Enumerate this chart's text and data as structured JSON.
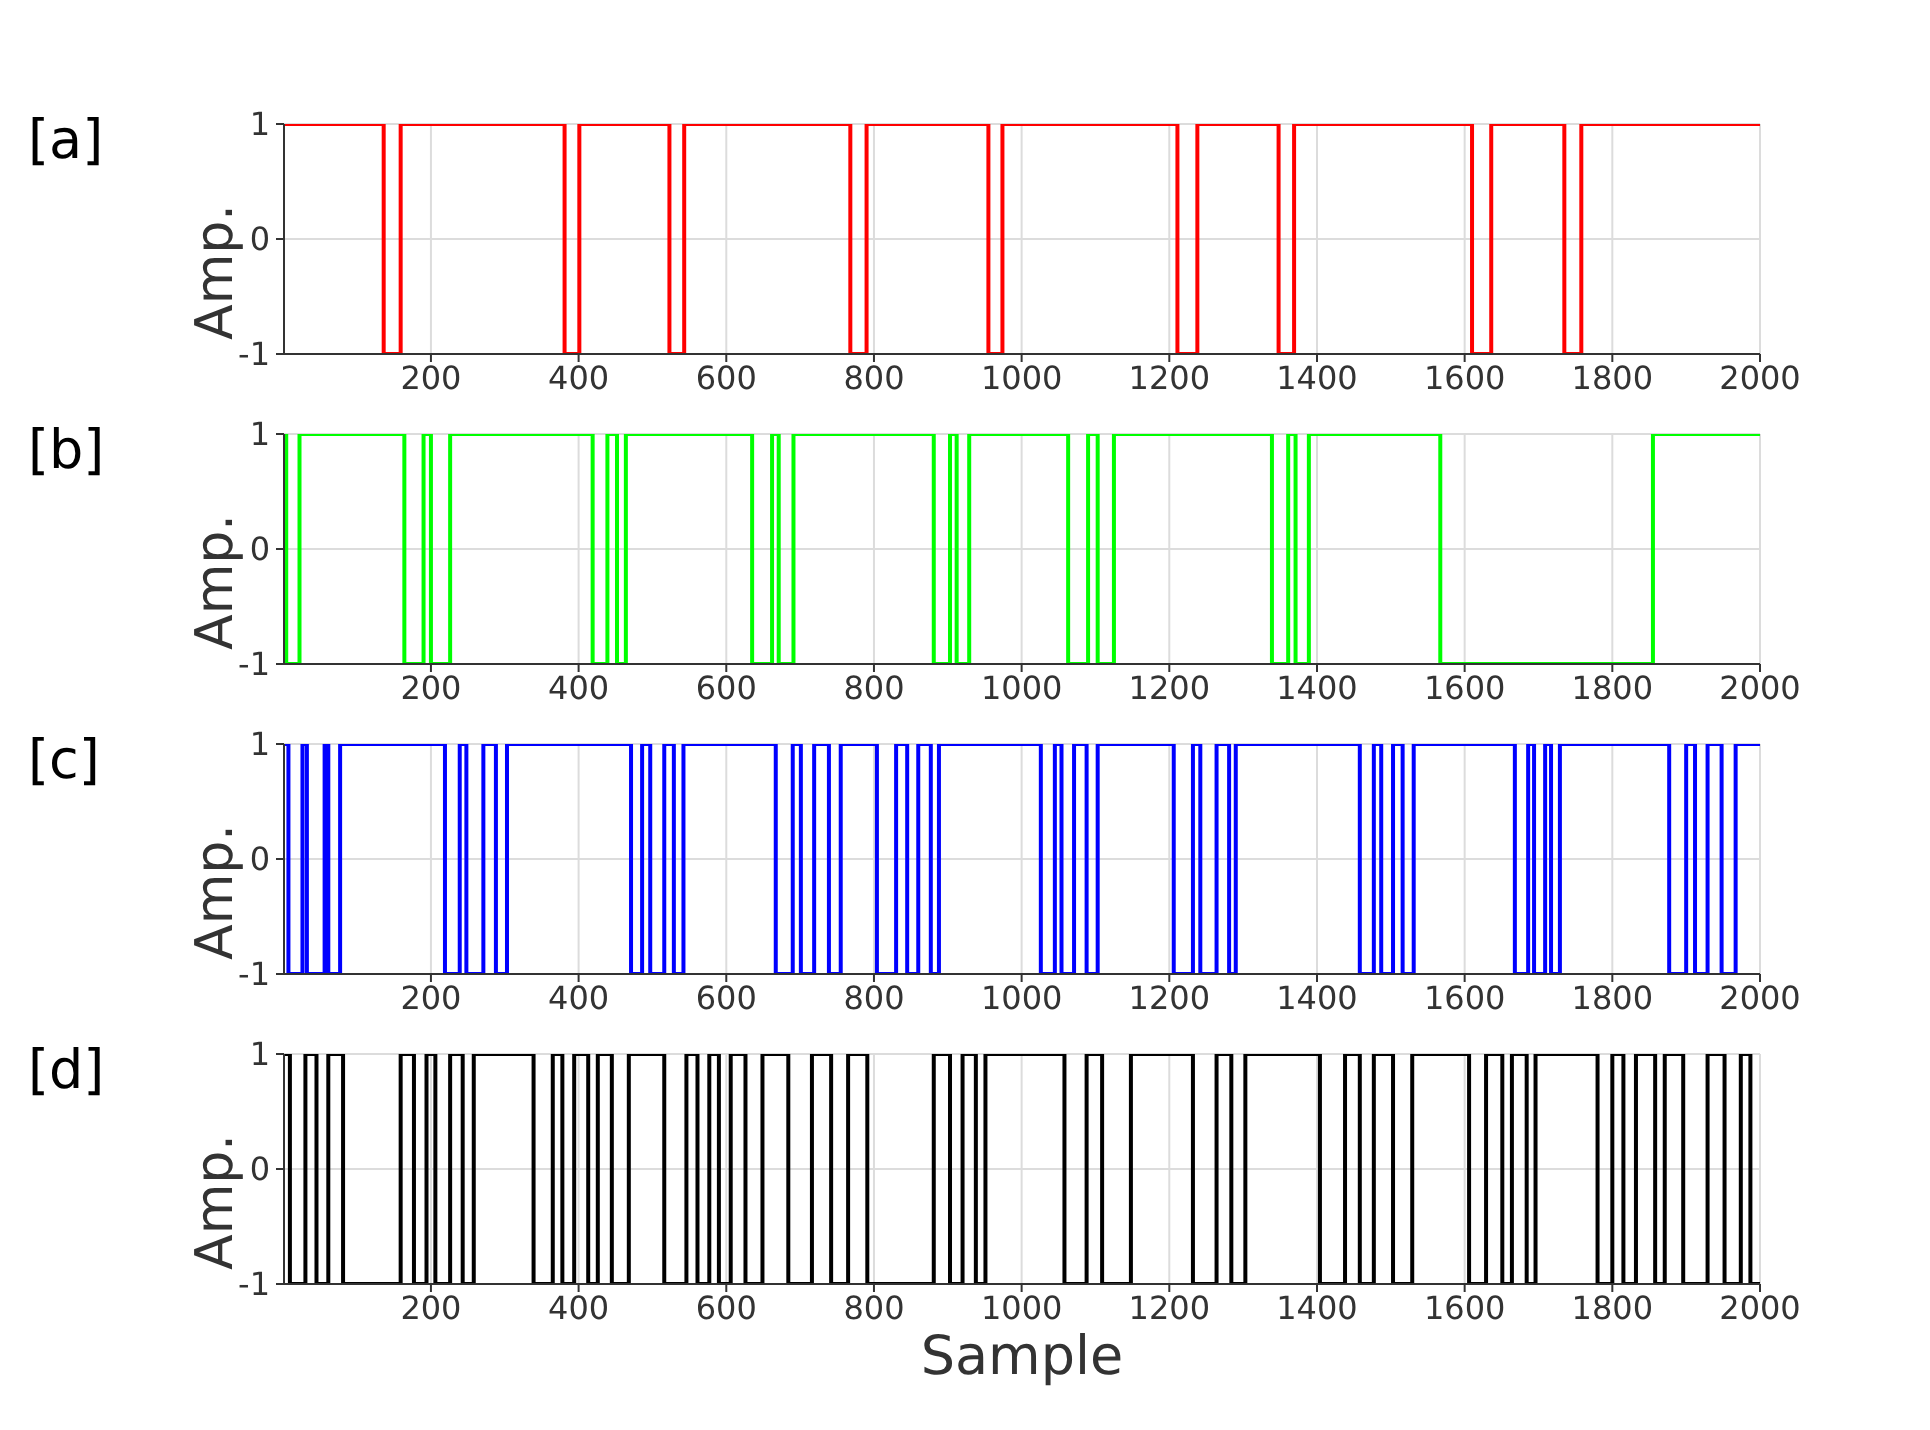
{
  "chart_data": [
    {
      "type": "step",
      "title": "[a]",
      "ylabel": "Amp.",
      "xlim": [
        1,
        2000
      ],
      "xticks": [
        200,
        400,
        600,
        800,
        1000,
        1200,
        1400,
        1600,
        1800,
        2000
      ],
      "ylim": [
        -1,
        1
      ],
      "yticks": [
        -1,
        0,
        1
      ],
      "grid": true,
      "color": "#ff0000",
      "x": [
        1,
        136,
        159,
        381,
        401,
        523,
        543,
        768,
        790,
        955,
        974,
        1211,
        1238,
        1348,
        1369,
        1610,
        1636,
        1735,
        1758,
        2000
      ],
      "values": [
        1,
        -1,
        1,
        -1,
        1,
        -1,
        1,
        -1,
        1,
        -1,
        1,
        -1,
        1,
        -1,
        1,
        -1,
        1,
        -1,
        1,
        1
      ]
    },
    {
      "type": "step",
      "title": "[b]",
      "ylabel": "Amp.",
      "xlim": [
        1,
        2000
      ],
      "xticks": [
        200,
        400,
        600,
        800,
        1000,
        1200,
        1400,
        1600,
        1800,
        2000
      ],
      "ylim": [
        -1,
        1
      ],
      "yticks": [
        -1,
        0,
        1
      ],
      "grid": true,
      "color": "#00ff00",
      "x": [
        1,
        4,
        22,
        164,
        190,
        200,
        226,
        419,
        439,
        452,
        464,
        635,
        662,
        671,
        691,
        881,
        903,
        912,
        929,
        1063,
        1090,
        1103,
        1125,
        1339,
        1361,
        1371,
        1389,
        1567,
        1855,
        2000
      ],
      "values": [
        1,
        -1,
        1,
        -1,
        1,
        -1,
        1,
        -1,
        1,
        -1,
        1,
        -1,
        1,
        -1,
        1,
        -1,
        1,
        -1,
        1,
        -1,
        1,
        -1,
        1,
        -1,
        1,
        -1,
        1,
        -1,
        1,
        1
      ]
    },
    {
      "type": "step",
      "title": "[c]",
      "ylabel": "Amp.",
      "xlim": [
        1,
        2000
      ],
      "xticks": [
        200,
        400,
        600,
        800,
        1000,
        1200,
        1400,
        1600,
        1800,
        2000
      ],
      "ylim": [
        -1,
        1
      ],
      "yticks": [
        -1,
        0,
        1
      ],
      "grid": true,
      "color": "#0000ff",
      "x": [
        1,
        7,
        26,
        32,
        56,
        61,
        77,
        219,
        239,
        248,
        271,
        288,
        303,
        471,
        486,
        497,
        516,
        529,
        542,
        667,
        690,
        701,
        719,
        739,
        755,
        804,
        830,
        845,
        860,
        877,
        888,
        1026,
        1045,
        1054,
        1071,
        1088,
        1103,
        1206,
        1232,
        1242,
        1264,
        1281,
        1290,
        1458,
        1477,
        1487,
        1503,
        1516,
        1531,
        1668,
        1686,
        1694,
        1709,
        1717,
        1729,
        1877,
        1900,
        1912,
        1929,
        1948,
        1967,
        2000
      ],
      "values": [
        1,
        -1,
        1,
        -1,
        1,
        -1,
        1,
        -1,
        1,
        -1,
        1,
        -1,
        1,
        -1,
        1,
        -1,
        1,
        -1,
        1,
        -1,
        1,
        -1,
        1,
        -1,
        1,
        -1,
        1,
        -1,
        1,
        -1,
        1,
        -1,
        1,
        -1,
        1,
        -1,
        1,
        -1,
        1,
        -1,
        1,
        -1,
        1,
        -1,
        1,
        -1,
        1,
        -1,
        1,
        -1,
        1,
        -1,
        1,
        -1,
        1,
        -1,
        1,
        -1,
        1,
        -1,
        1,
        1
      ]
    },
    {
      "type": "step",
      "title": "[d]",
      "ylabel": "Amp.",
      "xlabel": "Sample",
      "xlim": [
        1,
        2000
      ],
      "xticks": [
        200,
        400,
        600,
        800,
        1000,
        1200,
        1400,
        1600,
        1800,
        2000
      ],
      "ylim": [
        -1,
        1
      ],
      "yticks": [
        -1,
        0,
        1
      ],
      "grid": true,
      "color": "#000000",
      "x": [
        1,
        9,
        30,
        45,
        61,
        81,
        159,
        177,
        194,
        206,
        226,
        243,
        258,
        339,
        365,
        378,
        394,
        413,
        426,
        445,
        468,
        516,
        546,
        561,
        577,
        590,
        606,
        626,
        649,
        684,
        716,
        742,
        765,
        791,
        881,
        903,
        920,
        938,
        951,
        1058,
        1088,
        1109,
        1148,
        1232,
        1264,
        1284,
        1303,
        1404,
        1438,
        1458,
        1477,
        1503,
        1529,
        1606,
        1629,
        1651,
        1664,
        1684,
        1696,
        1780,
        1800,
        1815,
        1832,
        1858,
        1871,
        1896,
        1929,
        1952,
        1974,
        1987,
        2000
      ],
      "values": [
        1,
        -1,
        1,
        -1,
        1,
        -1,
        1,
        -1,
        1,
        -1,
        1,
        -1,
        1,
        -1,
        1,
        -1,
        1,
        -1,
        1,
        -1,
        1,
        -1,
        1,
        -1,
        1,
        -1,
        1,
        -1,
        1,
        -1,
        1,
        -1,
        1,
        -1,
        1,
        -1,
        1,
        -1,
        1,
        -1,
        1,
        -1,
        1,
        -1,
        1,
        -1,
        1,
        -1,
        1,
        -1,
        1,
        -1,
        1,
        -1,
        1,
        -1,
        1,
        -1,
        1,
        -1,
        1,
        -1,
        1,
        -1,
        1,
        -1,
        1,
        -1,
        1,
        -1,
        -1
      ]
    }
  ]
}
